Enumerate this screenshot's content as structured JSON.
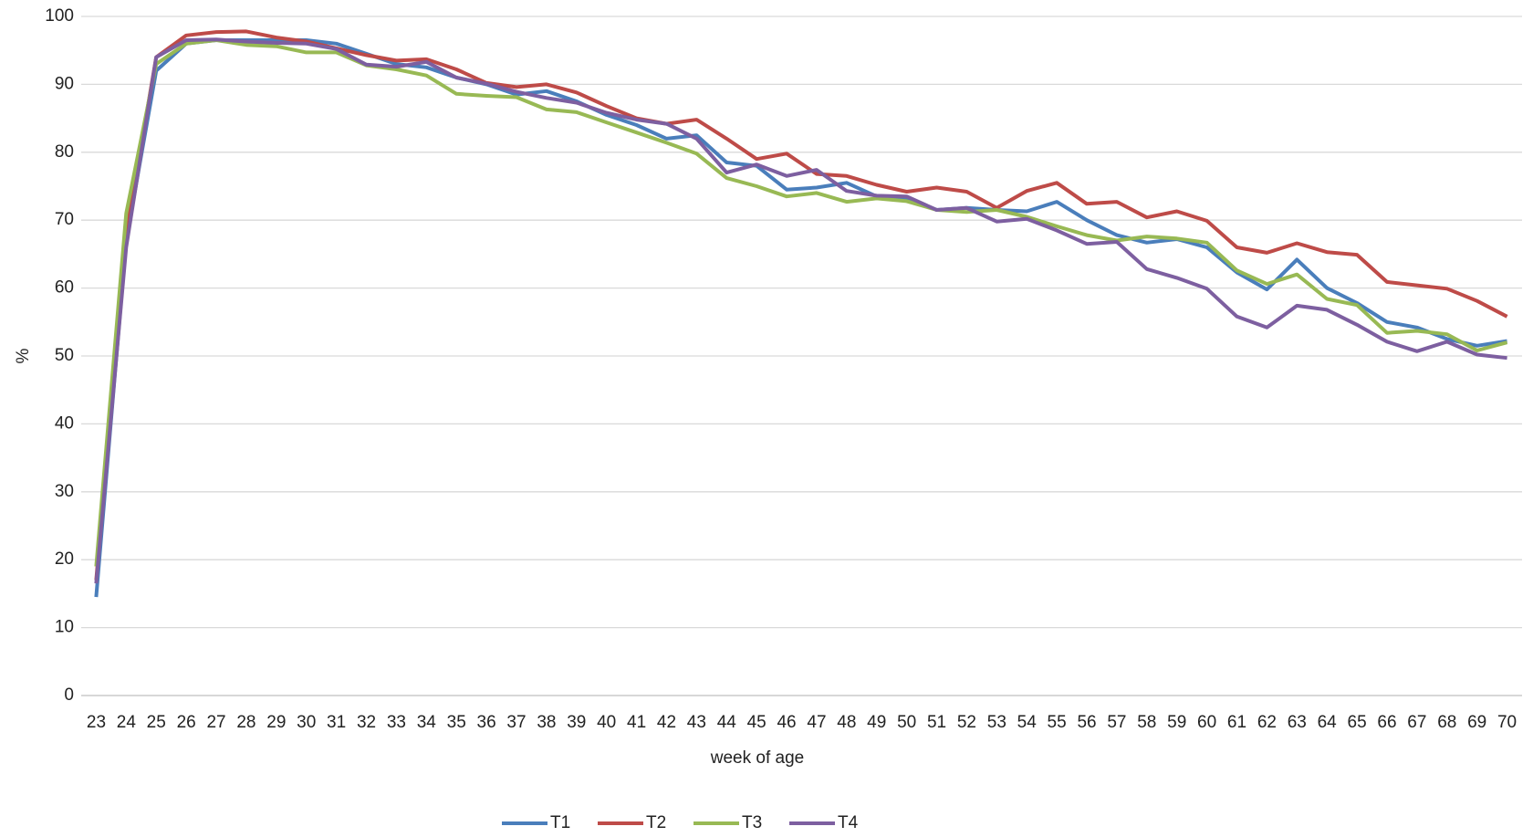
{
  "chart_data": {
    "type": "line",
    "x_label": "week of age",
    "y_label": "%",
    "categories": [
      "23",
      "24",
      "25",
      "26",
      "27",
      "28",
      "29",
      "30",
      "31",
      "32",
      "33",
      "34",
      "35",
      "36",
      "37",
      "38",
      "39",
      "40",
      "41",
      "42",
      "43",
      "44",
      "45",
      "46",
      "47",
      "48",
      "49",
      "50",
      "51",
      "52",
      "53",
      "54",
      "55",
      "56",
      "57",
      "58",
      "59",
      "60",
      "61",
      "62",
      "63",
      "64",
      "65",
      "66",
      "67",
      "68",
      "69",
      "70"
    ],
    "series": [
      {
        "name": "T1",
        "color": "#4a7ebb",
        "values": [
          14.5,
          67,
          92,
          96,
          96.5,
          96.5,
          96.5,
          96.5,
          96,
          94.5,
          93,
          92.5,
          91,
          90,
          88.5,
          89,
          87.5,
          85.5,
          84,
          82,
          82.5,
          78.5,
          78,
          74.5,
          74.8,
          75.5,
          73.5,
          73.3,
          71.5,
          71.8,
          71.5,
          71.3,
          72.7,
          70,
          67.8,
          66.7,
          67.2,
          66,
          62.3,
          59.8,
          64.2,
          60,
          57.8,
          55,
          54.2,
          52.5,
          51.5,
          52.2
        ]
      },
      {
        "name": "T2",
        "color": "#be4b48",
        "values": [
          17,
          68,
          94,
          97.2,
          97.7,
          97.8,
          96.9,
          96.3,
          95.3,
          94.3,
          93.5,
          93.7,
          92.2,
          90.2,
          89.6,
          90,
          88.8,
          86.8,
          85,
          84.2,
          84.8,
          82,
          79,
          79.8,
          76.8,
          76.5,
          75.2,
          74.2,
          74.8,
          74.2,
          71.8,
          74.3,
          75.5,
          72.4,
          72.7,
          70.4,
          71.3,
          69.9,
          66,
          65.2,
          66.6,
          65.3,
          64.9,
          60.9,
          60.4,
          59.9,
          58.1,
          55.8
        ]
      },
      {
        "name": "T3",
        "color": "#98b954",
        "values": [
          19,
          71,
          93,
          96,
          96.5,
          95.8,
          95.6,
          94.7,
          94.7,
          92.8,
          92.2,
          91.3,
          88.6,
          88.3,
          88.1,
          86.3,
          85.9,
          84.4,
          82.9,
          81.4,
          79.8,
          76.2,
          75,
          73.5,
          74,
          72.7,
          73.2,
          72.8,
          71.5,
          71.2,
          71.5,
          70.5,
          69.1,
          67.8,
          67,
          67.6,
          67.3,
          66.7,
          62.6,
          60.6,
          62,
          58.4,
          57.5,
          53.4,
          53.7,
          53.2,
          50.8,
          52
        ]
      },
      {
        "name": "T4",
        "color": "#7d5fa0",
        "values": [
          16.5,
          66,
          94,
          96.5,
          96.6,
          96.3,
          96.1,
          96,
          95.2,
          92.9,
          92.6,
          93.3,
          91,
          90.1,
          88.9,
          88,
          87.3,
          85.8,
          84.8,
          84.2,
          82,
          77,
          78.2,
          76.5,
          77.4,
          74.3,
          73.6,
          73.5,
          71.5,
          71.8,
          69.8,
          70.2,
          68.5,
          66.5,
          66.8,
          62.8,
          61.5,
          59.9,
          55.8,
          54.2,
          57.4,
          56.8,
          54.6,
          52.1,
          50.7,
          52.1,
          50.2,
          49.7
        ]
      }
    ],
    "ylim": [
      0,
      100
    ],
    "yticks": [
      0,
      10,
      20,
      30,
      40,
      50,
      60,
      70,
      80,
      90,
      100
    ],
    "grid": true,
    "legend": "bottom"
  }
}
